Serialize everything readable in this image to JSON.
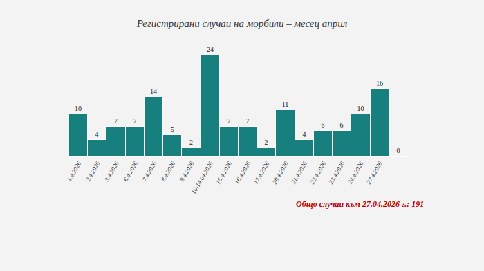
{
  "chart_data": {
    "type": "bar",
    "title": "Регистрирани случаи на морбили – месец април",
    "categories": [
      "1.4.2026",
      "2.4.2026",
      "3.4.2026",
      "6.4.2026",
      "7.4.2026",
      "8.4.2026",
      "9.4.2026",
      "10-14.04.2026",
      "15.4.2026",
      "16.4.2026",
      "17.4.2026",
      "20.4.2026",
      "21.4.2026",
      "22.4.2026",
      "23.4.2026",
      "24.4.2026",
      "27.4.2026",
      null
    ],
    "values": [
      10,
      4,
      7,
      7,
      14,
      5,
      2,
      24,
      7,
      7,
      2,
      11,
      4,
      6,
      6,
      10,
      16,
      0
    ],
    "color": "#177f7d",
    "ylim": [
      0,
      24
    ],
    "grid": false,
    "data_labels": true,
    "tick_labels": "x",
    "annotations": [
      "Общо случаи към 27.04.2026 г.: 191"
    ]
  }
}
